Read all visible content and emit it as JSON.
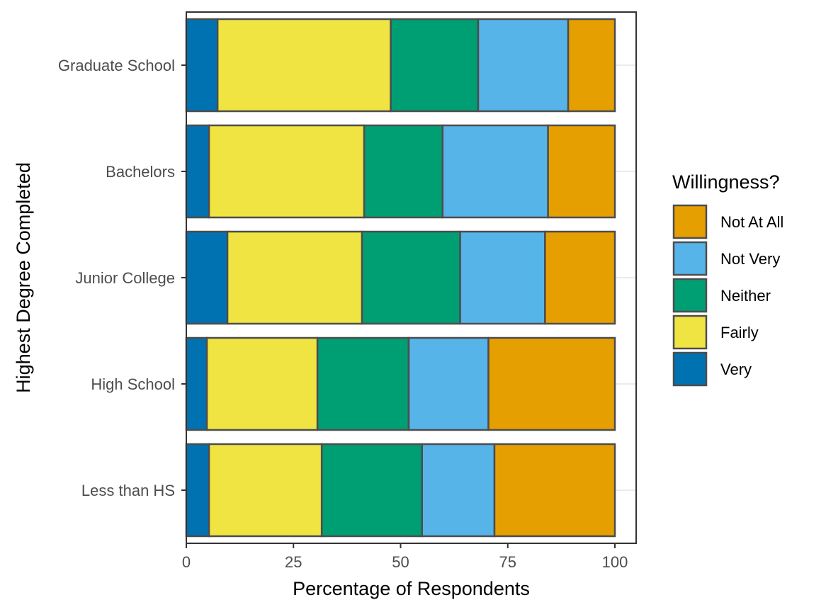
{
  "chart_data": {
    "type": "bar",
    "orientation": "horizontal",
    "stacked": true,
    "xlabel": "Percentage of Respondents",
    "ylabel": "Highest Degree Completed",
    "xlim": [
      0,
      100
    ],
    "xticks": [
      0,
      25,
      50,
      75,
      100
    ],
    "grid": true,
    "legend_position": "right",
    "legend_title": "Willingness?",
    "categories": [
      "Graduate School",
      "Bachelors",
      "Junior College",
      "High School",
      "Less than HS"
    ],
    "series": [
      {
        "name": "Very",
        "color": "#0072B2",
        "values": [
          7.3,
          5.3,
          9.6,
          4.8,
          5.3
        ]
      },
      {
        "name": "Fairly",
        "color": "#F0E442",
        "values": [
          40.4,
          36.2,
          31.4,
          25.8,
          26.3
        ]
      },
      {
        "name": "Neither",
        "color": "#009E73",
        "values": [
          20.4,
          18.3,
          22.9,
          21.3,
          23.4
        ]
      },
      {
        "name": "Not Very",
        "color": "#56B4E9",
        "values": [
          21.0,
          24.6,
          19.8,
          18.6,
          16.9
        ]
      },
      {
        "name": "Not At All",
        "color": "#E69F00",
        "values": [
          10.9,
          15.6,
          16.3,
          29.5,
          28.1
        ]
      }
    ],
    "legend_order": [
      "Not At All",
      "Not Very",
      "Neither",
      "Fairly",
      "Very"
    ]
  }
}
